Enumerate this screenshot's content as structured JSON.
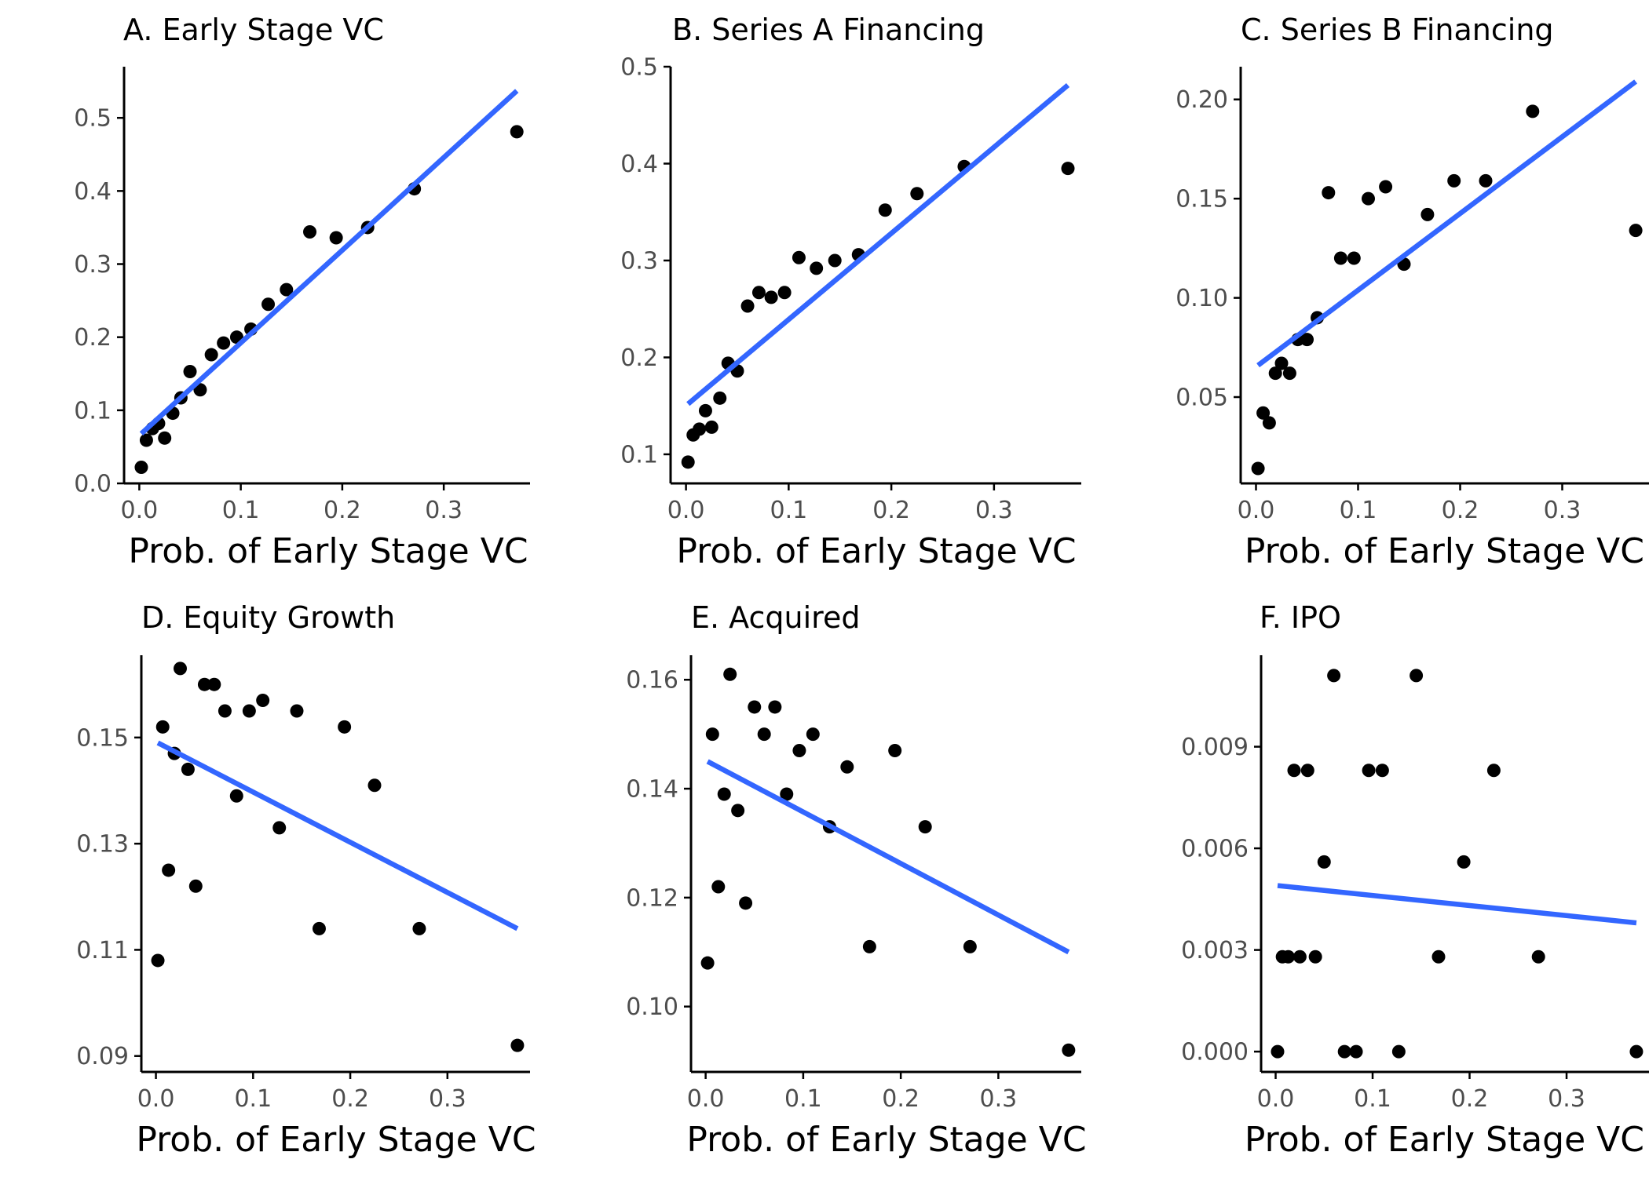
{
  "colors": {
    "point": "#000000",
    "fit_line": "#3366FF",
    "axis": "#000000",
    "tick_label": "#4d4d4d",
    "background": "#ffffff"
  },
  "chart_data": [
    {
      "type": "scatter",
      "title": "A. Early Stage VC",
      "xlabel": "Prob. of Early Stage VC",
      "ylabel": "",
      "xlim": [
        -0.015,
        0.385
      ],
      "ylim": [
        0.0,
        0.57
      ],
      "xticks": [
        0.0,
        0.1,
        0.2,
        0.3
      ],
      "xtick_labels": [
        "0.0",
        "0.1",
        "0.2",
        "0.3"
      ],
      "yticks": [
        0.0,
        0.1,
        0.2,
        0.3,
        0.4,
        0.5
      ],
      "ytick_labels": [
        "0.0",
        "0.1",
        "0.2",
        "0.3",
        "0.4",
        "0.5"
      ],
      "grid": false,
      "points": [
        [
          0.002,
          0.022
        ],
        [
          0.007,
          0.059
        ],
        [
          0.013,
          0.075
        ],
        [
          0.019,
          0.082
        ],
        [
          0.025,
          0.062
        ],
        [
          0.033,
          0.096
        ],
        [
          0.041,
          0.117
        ],
        [
          0.05,
          0.153
        ],
        [
          0.06,
          0.128
        ],
        [
          0.071,
          0.176
        ],
        [
          0.083,
          0.192
        ],
        [
          0.096,
          0.2
        ],
        [
          0.11,
          0.211
        ],
        [
          0.127,
          0.245
        ],
        [
          0.145,
          0.265
        ],
        [
          0.168,
          0.344
        ],
        [
          0.194,
          0.336
        ],
        [
          0.225,
          0.35
        ],
        [
          0.271,
          0.403
        ],
        [
          0.372,
          0.481
        ]
      ],
      "fit_line": [
        [
          0.002,
          0.068
        ],
        [
          0.372,
          0.537
        ]
      ]
    },
    {
      "type": "scatter",
      "title": "B. Series A Financing",
      "xlabel": "Prob. of Early Stage VC",
      "ylabel": "",
      "xlim": [
        -0.015,
        0.385
      ],
      "ylim": [
        0.07,
        0.5
      ],
      "xticks": [
        0.0,
        0.1,
        0.2,
        0.3
      ],
      "xtick_labels": [
        "0.0",
        "0.1",
        "0.2",
        "0.3"
      ],
      "yticks": [
        0.1,
        0.2,
        0.3,
        0.4,
        0.5
      ],
      "ytick_labels": [
        "0.1",
        "0.2",
        "0.3",
        "0.4",
        "0.5"
      ],
      "grid": false,
      "points": [
        [
          0.002,
          0.092
        ],
        [
          0.007,
          0.12
        ],
        [
          0.013,
          0.126
        ],
        [
          0.019,
          0.145
        ],
        [
          0.025,
          0.128
        ],
        [
          0.033,
          0.158
        ],
        [
          0.041,
          0.194
        ],
        [
          0.05,
          0.186
        ],
        [
          0.06,
          0.253
        ],
        [
          0.071,
          0.267
        ],
        [
          0.083,
          0.262
        ],
        [
          0.096,
          0.267
        ],
        [
          0.11,
          0.303
        ],
        [
          0.127,
          0.292
        ],
        [
          0.145,
          0.3
        ],
        [
          0.168,
          0.306
        ],
        [
          0.194,
          0.352
        ],
        [
          0.225,
          0.369
        ],
        [
          0.271,
          0.397
        ],
        [
          0.372,
          0.395
        ]
      ],
      "fit_line": [
        [
          0.002,
          0.152
        ],
        [
          0.372,
          0.481
        ]
      ]
    },
    {
      "type": "scatter",
      "title": "C. Series B Financing",
      "xlabel": "Prob. of Early Stage VC",
      "ylabel": "",
      "xlim": [
        -0.015,
        0.385
      ],
      "ylim": [
        0.0065,
        0.2165
      ],
      "xticks": [
        0.0,
        0.1,
        0.2,
        0.3
      ],
      "xtick_labels": [
        "0.0",
        "0.1",
        "0.2",
        "0.3"
      ],
      "yticks": [
        0.05,
        0.1,
        0.15,
        0.2
      ],
      "ytick_labels": [
        "0.05",
        "0.10",
        "0.15",
        "0.20"
      ],
      "grid": false,
      "points": [
        [
          0.002,
          0.014
        ],
        [
          0.007,
          0.042
        ],
        [
          0.013,
          0.037
        ],
        [
          0.019,
          0.062
        ],
        [
          0.025,
          0.067
        ],
        [
          0.033,
          0.062
        ],
        [
          0.041,
          0.079
        ],
        [
          0.05,
          0.079
        ],
        [
          0.06,
          0.09
        ],
        [
          0.071,
          0.153
        ],
        [
          0.083,
          0.12
        ],
        [
          0.096,
          0.12
        ],
        [
          0.11,
          0.15
        ],
        [
          0.127,
          0.156
        ],
        [
          0.145,
          0.117
        ],
        [
          0.168,
          0.142
        ],
        [
          0.194,
          0.159
        ],
        [
          0.225,
          0.159
        ],
        [
          0.271,
          0.194
        ],
        [
          0.372,
          0.134
        ]
      ],
      "fit_line": [
        [
          0.002,
          0.066
        ],
        [
          0.372,
          0.209
        ]
      ]
    },
    {
      "type": "scatter",
      "title": "D. Equity Growth",
      "xlabel": "Prob. of Early Stage VC",
      "ylabel": "",
      "xlim": [
        -0.015,
        0.385
      ],
      "ylim": [
        0.087,
        0.1655
      ],
      "xticks": [
        0.0,
        0.1,
        0.2,
        0.3
      ],
      "xtick_labels": [
        "0.0",
        "0.1",
        "0.2",
        "0.3"
      ],
      "yticks": [
        0.09,
        0.11,
        0.13,
        0.15
      ],
      "ytick_labels": [
        "0.09",
        "0.11",
        "0.13",
        "0.15"
      ],
      "grid": false,
      "points": [
        [
          0.002,
          0.108
        ],
        [
          0.007,
          0.152
        ],
        [
          0.013,
          0.125
        ],
        [
          0.019,
          0.147
        ],
        [
          0.025,
          0.163
        ],
        [
          0.033,
          0.144
        ],
        [
          0.041,
          0.122
        ],
        [
          0.05,
          0.16
        ],
        [
          0.06,
          0.16
        ],
        [
          0.071,
          0.155
        ],
        [
          0.083,
          0.139
        ],
        [
          0.096,
          0.155
        ],
        [
          0.11,
          0.157
        ],
        [
          0.127,
          0.133
        ],
        [
          0.145,
          0.155
        ],
        [
          0.168,
          0.114
        ],
        [
          0.194,
          0.152
        ],
        [
          0.225,
          0.141
        ],
        [
          0.271,
          0.114
        ],
        [
          0.372,
          0.092
        ]
      ],
      "fit_line": [
        [
          0.002,
          0.149
        ],
        [
          0.372,
          0.114
        ]
      ]
    },
    {
      "type": "scatter",
      "title": "E. Acquired",
      "xlabel": "Prob. of Early Stage VC",
      "ylabel": "",
      "xlim": [
        -0.015,
        0.385
      ],
      "ylim": [
        0.088,
        0.1645
      ],
      "xticks": [
        0.0,
        0.1,
        0.2,
        0.3
      ],
      "xtick_labels": [
        "0.0",
        "0.1",
        "0.2",
        "0.3"
      ],
      "yticks": [
        0.1,
        0.12,
        0.14,
        0.16
      ],
      "ytick_labels": [
        "0.10",
        "0.12",
        "0.14",
        "0.16"
      ],
      "grid": false,
      "points": [
        [
          0.002,
          0.108
        ],
        [
          0.007,
          0.15
        ],
        [
          0.013,
          0.122
        ],
        [
          0.019,
          0.139
        ],
        [
          0.025,
          0.161
        ],
        [
          0.033,
          0.136
        ],
        [
          0.041,
          0.119
        ],
        [
          0.05,
          0.155
        ],
        [
          0.06,
          0.15
        ],
        [
          0.071,
          0.155
        ],
        [
          0.083,
          0.139
        ],
        [
          0.096,
          0.147
        ],
        [
          0.11,
          0.15
        ],
        [
          0.127,
          0.133
        ],
        [
          0.145,
          0.144
        ],
        [
          0.168,
          0.111
        ],
        [
          0.194,
          0.147
        ],
        [
          0.225,
          0.133
        ],
        [
          0.271,
          0.111
        ],
        [
          0.372,
          0.092
        ]
      ],
      "fit_line": [
        [
          0.002,
          0.145
        ],
        [
          0.372,
          0.11
        ]
      ]
    },
    {
      "type": "scatter",
      "title": "F. IPO",
      "xlabel": "Prob. of Early Stage VC",
      "ylabel": "",
      "xlim": [
        -0.015,
        0.385
      ],
      "ylim": [
        -0.0006,
        0.0117
      ],
      "xticks": [
        0.0,
        0.1,
        0.2,
        0.3
      ],
      "xtick_labels": [
        "0.0",
        "0.1",
        "0.2",
        "0.3"
      ],
      "yticks": [
        0.0,
        0.003,
        0.006,
        0.009
      ],
      "ytick_labels": [
        "0.000",
        "0.003",
        "0.006",
        "0.009"
      ],
      "grid": false,
      "points": [
        [
          0.002,
          0.0
        ],
        [
          0.007,
          0.0028
        ],
        [
          0.013,
          0.0028
        ],
        [
          0.019,
          0.0083
        ],
        [
          0.025,
          0.0028
        ],
        [
          0.033,
          0.0083
        ],
        [
          0.041,
          0.0028
        ],
        [
          0.05,
          0.0056
        ],
        [
          0.06,
          0.0111
        ],
        [
          0.071,
          0.0
        ],
        [
          0.083,
          0.0
        ],
        [
          0.096,
          0.0083
        ],
        [
          0.11,
          0.0083
        ],
        [
          0.127,
          0.0
        ],
        [
          0.145,
          0.0111
        ],
        [
          0.168,
          0.0028
        ],
        [
          0.194,
          0.0056
        ],
        [
          0.225,
          0.0083
        ],
        [
          0.271,
          0.0028
        ],
        [
          0.372,
          0.0
        ]
      ],
      "fit_line": [
        [
          0.002,
          0.0049
        ],
        [
          0.372,
          0.0038
        ]
      ]
    }
  ]
}
